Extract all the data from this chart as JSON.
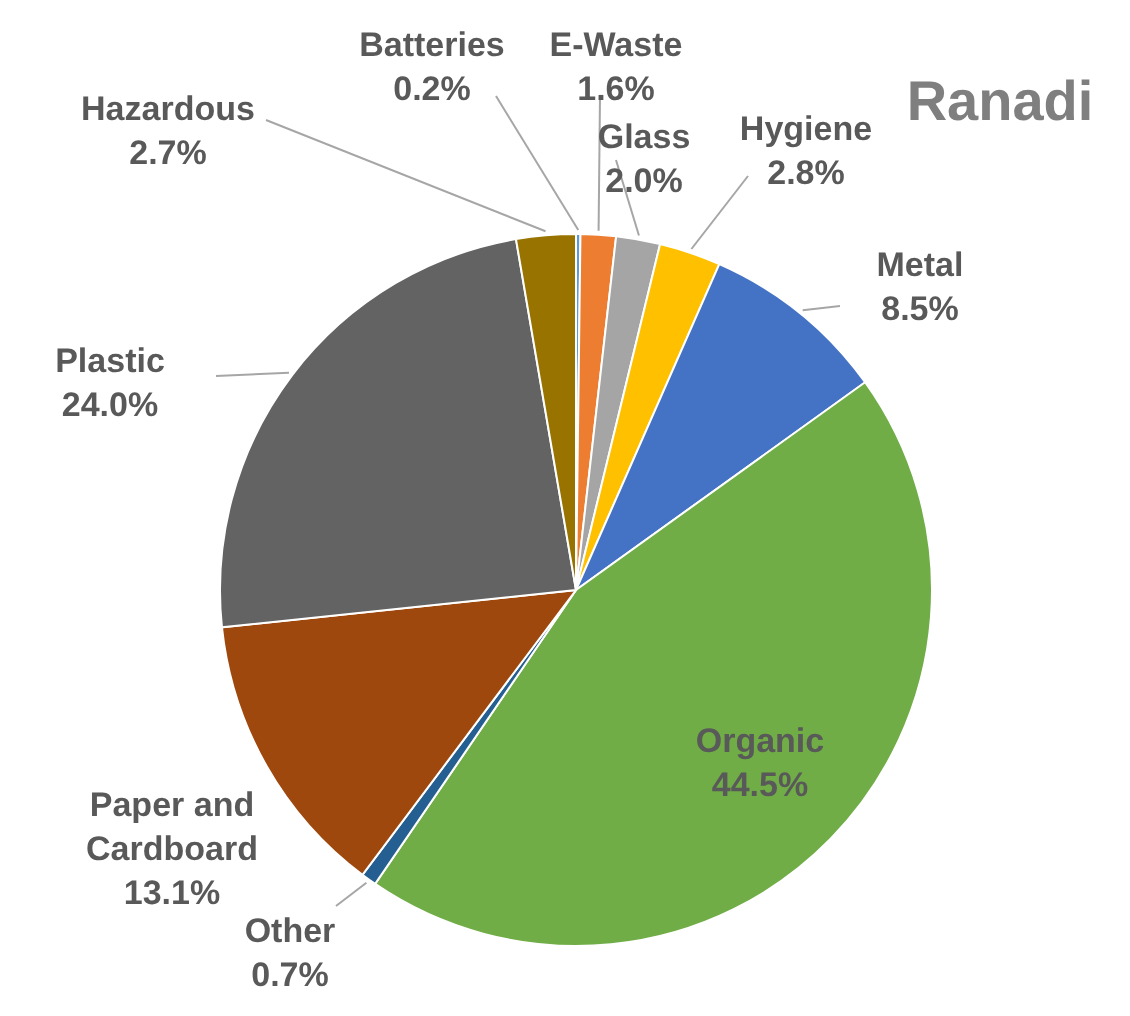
{
  "chart_data": {
    "type": "pie",
    "title": "Ranadi",
    "categories": [
      "Batteries",
      "E-Waste",
      "Glass",
      "Hygiene",
      "Metal",
      "Organic",
      "Other",
      "Paper and Cardboard",
      "Plastic",
      "Hazardous"
    ],
    "values": [
      0.2,
      1.6,
      2.0,
      2.8,
      8.5,
      44.5,
      0.7,
      13.1,
      24.0,
      2.7
    ],
    "value_labels": [
      "0.2%",
      "1.6%",
      "2.0%",
      "2.8%",
      "8.5%",
      "44.5%",
      "0.7%",
      "13.1%",
      "24.0%",
      "2.7%"
    ],
    "colors": [
      "#5b9bd5",
      "#ed7d31",
      "#a5a5a5",
      "#ffc000",
      "#4472c4",
      "#70ad47",
      "#255e91",
      "#9e480e",
      "#636363",
      "#997300"
    ]
  }
}
